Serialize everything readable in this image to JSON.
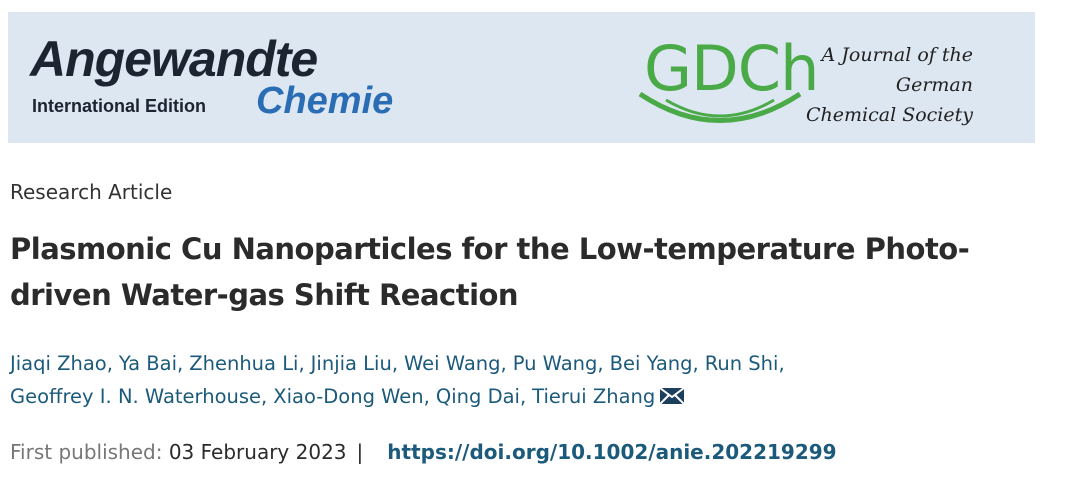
{
  "header": {
    "journal_name": "Angewandte",
    "edition": "International Edition",
    "journal_subname": "Chemie",
    "society_logo": "GDCh",
    "society_text": [
      "A Journal of the",
      "German",
      "Chemical Society"
    ]
  },
  "article": {
    "type": "Research Article",
    "title_lines": [
      "Plasmonic Cu Nanoparticles for the Low-temperature Photo-",
      "driven Water-gas Shift Reaction"
    ],
    "author_lines": [
      [
        "Jiaqi Zhao,",
        "Ya Bai,",
        "Zhenhua Li,",
        "Jinjia Liu,",
        "Wei Wang,",
        "Pu Wang,",
        "Bei Yang,",
        "Run Shi,"
      ],
      [
        "Geoffrey I. N. Waterhouse,",
        "Xiao-Dong Wen,",
        "Qing Dai,",
        "Tierui Zhang"
      ]
    ],
    "published_label": "First published:",
    "published_date": "03 February 2023",
    "separator": "|",
    "doi": "https://doi.org/10.1002/anie.202219299"
  }
}
